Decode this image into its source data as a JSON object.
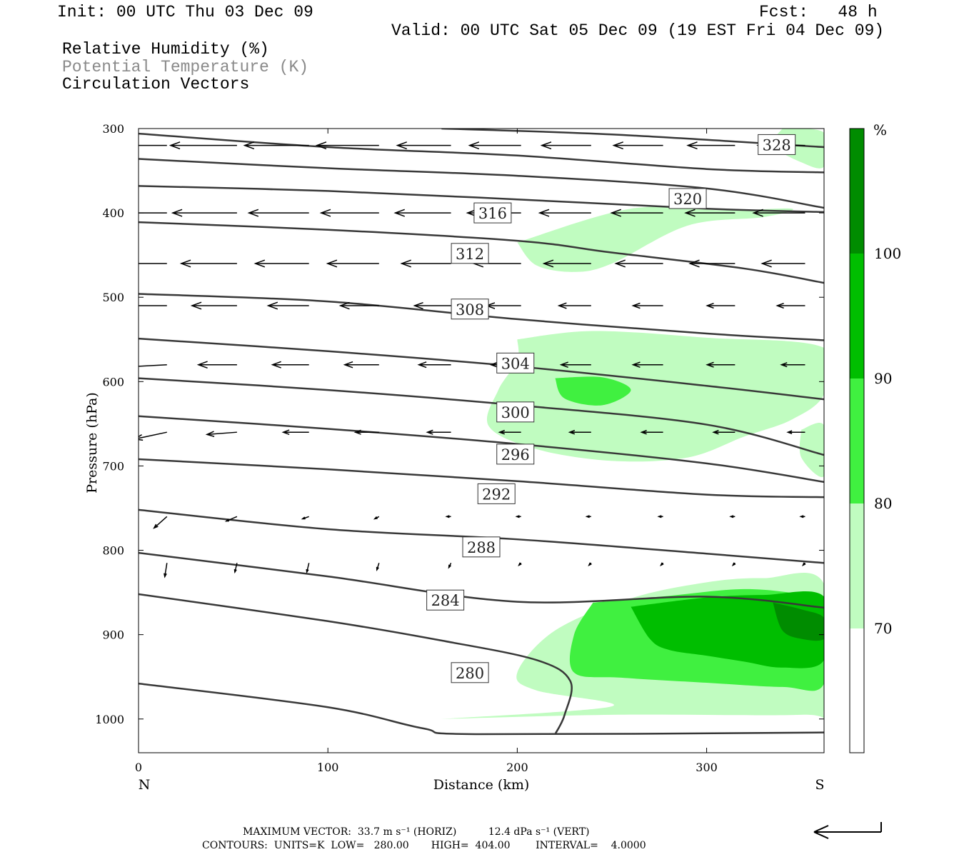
{
  "header": {
    "init": "Init: 00 UTC Thu 03 Dec 09",
    "fcst": "Fcst:   48 h",
    "valid": "Valid: 00 UTC Sat 05 Dec 09 (19 EST Fri 04 Dec 09)",
    "fields": [
      "Relative Humidity (%)",
      "Potential Temperature (K)",
      "Circulation Vectors"
    ]
  },
  "footer": {
    "max_vector_prefix": "MAXIMUM VECTOR:",
    "horiz": "33.7 m s⁻¹ (HORIZ)",
    "vert": "12.4 dPa s⁻¹ (VERT)",
    "contours": "CONTOURS:  UNITS=K  LOW=   280.00",
    "high": "HIGH=  404.00",
    "interval": "INTERVAL=    4.0000"
  },
  "colors": {
    "rh_70": "#c0fcc0",
    "rh_80": "#40f040",
    "rh_90": "#00be00",
    "rh_100": "#008c00",
    "contour": "#383838",
    "muted_text": "#8a8a8a"
  },
  "chart_data": {
    "type": "cross-section",
    "xlabel": "Distance (km)",
    "ylabel": "Pressure (hPa)",
    "xlim": [
      0,
      362
    ],
    "ylim": [
      300,
      1040
    ],
    "x_ticks": [
      0,
      100,
      200,
      300
    ],
    "y_ticks": [
      300,
      400,
      500,
      600,
      700,
      800,
      900,
      1000
    ],
    "x_end_labels": {
      "left": "N",
      "right": "S"
    },
    "colorbar": {
      "unit": "%",
      "levels": [
        70,
        80,
        90,
        100
      ]
    },
    "theta_contours": [
      {
        "label": "328",
        "label_at": [
          337,
          319
        ],
        "points": [
          [
            160,
            300
          ],
          [
            250,
            307
          ],
          [
            362,
            322
          ]
        ]
      },
      {
        "label": null,
        "points": [
          [
            0,
            306
          ],
          [
            100,
            322
          ],
          [
            200,
            332
          ],
          [
            300,
            348
          ],
          [
            362,
            352
          ]
        ]
      },
      {
        "label": null,
        "points": [
          [
            0,
            336
          ],
          [
            100,
            347
          ],
          [
            200,
            356
          ],
          [
            300,
            371
          ],
          [
            362,
            394
          ]
        ]
      },
      {
        "label": "320",
        "label_at": [
          290,
          383
        ],
        "points": [
          [
            0,
            368
          ],
          [
            100,
            374
          ],
          [
            200,
            384
          ],
          [
            300,
            395
          ],
          [
            362,
            399
          ]
        ]
      },
      {
        "label": "316",
        "label_at": [
          187,
          400
        ],
        "points": [
          [
            0,
            411
          ],
          [
            100,
            420
          ],
          [
            200,
            433
          ],
          [
            250,
            447
          ],
          [
            320,
            466
          ],
          [
            362,
            483
          ]
        ]
      },
      {
        "label": "312",
        "label_at": [
          175,
          448
        ],
        "points": [
          [
            0,
            496
          ],
          [
            100,
            505
          ],
          [
            200,
            526
          ],
          [
            300,
            543
          ],
          [
            362,
            551
          ]
        ]
      },
      {
        "label": "308",
        "label_at": [
          175,
          514
        ],
        "points": [
          [
            0,
            549
          ],
          [
            100,
            564
          ],
          [
            200,
            582
          ],
          [
            300,
            605
          ],
          [
            362,
            621
          ]
        ]
      },
      {
        "label": "304",
        "label_at": [
          199,
          578
        ],
        "points": [
          [
            0,
            596
          ],
          [
            100,
            610
          ],
          [
            200,
            628
          ],
          [
            300,
            651
          ],
          [
            362,
            687
          ]
        ]
      },
      {
        "label": "300",
        "label_at": [
          199,
          636
        ],
        "points": [
          [
            0,
            641
          ],
          [
            100,
            656
          ],
          [
            200,
            674
          ],
          [
            300,
            697
          ],
          [
            362,
            719
          ]
        ]
      },
      {
        "label": "296",
        "label_at": [
          199,
          686
        ],
        "points": [
          [
            0,
            692
          ],
          [
            100,
            704
          ],
          [
            200,
            718
          ],
          [
            300,
            734
          ],
          [
            362,
            737
          ]
        ]
      },
      {
        "label": "292",
        "label_at": [
          189,
          733
        ],
        "points": [
          [
            0,
            752
          ],
          [
            100,
            775
          ],
          [
            200,
            787
          ],
          [
            300,
            804
          ],
          [
            362,
            815
          ]
        ]
      },
      {
        "label": "288",
        "label_at": [
          181,
          796
        ],
        "points": [
          [
            0,
            803
          ],
          [
            100,
            831
          ],
          [
            200,
            861
          ],
          [
            300,
            855
          ],
          [
            362,
            868
          ]
        ]
      },
      {
        "label": "284",
        "label_at": [
          162,
          859
        ],
        "points": [
          [
            0,
            852
          ],
          [
            100,
            884
          ],
          [
            160,
            907
          ],
          [
            210,
            930
          ],
          [
            228,
            955
          ],
          [
            225,
            995
          ],
          [
            220,
            1018
          ]
        ]
      },
      {
        "label": "280",
        "label_at": [
          175,
          945
        ],
        "points": [
          [
            0,
            958
          ],
          [
            100,
            986
          ],
          [
            150,
            1011
          ],
          [
            180,
            1018
          ],
          [
            362,
            1016
          ]
        ]
      }
    ],
    "rh_regions": [
      {
        "level": 70,
        "points": [
          [
            160,
            1000
          ],
          [
            250,
            995
          ],
          [
            350,
            995
          ],
          [
            362,
            986
          ],
          [
            362,
            840
          ],
          [
            330,
            833
          ],
          [
            300,
            838
          ],
          [
            260,
            857
          ],
          [
            220,
            895
          ],
          [
            200,
            945
          ],
          [
            210,
            966
          ],
          [
            250,
            985
          ]
        ]
      },
      {
        "level": 70,
        "points": [
          [
            200,
            550
          ],
          [
            240,
            540
          ],
          [
            300,
            548
          ],
          [
            362,
            560
          ],
          [
            362,
            615
          ],
          [
            345,
            645
          ],
          [
            320,
            665
          ],
          [
            290,
            690
          ],
          [
            250,
            694
          ],
          [
            210,
            680
          ],
          [
            185,
            653
          ],
          [
            190,
            610
          ],
          [
            200,
            575
          ]
        ]
      },
      {
        "level": 70,
        "points": [
          [
            200,
            435
          ],
          [
            260,
            395
          ],
          [
            310,
            397
          ],
          [
            345,
            395
          ],
          [
            330,
            405
          ],
          [
            290,
            415
          ],
          [
            250,
            460
          ],
          [
            230,
            470
          ],
          [
            210,
            462
          ]
        ]
      },
      {
        "level": 70,
        "points": [
          [
            340,
            300
          ],
          [
            362,
            305
          ],
          [
            362,
            345
          ],
          [
            350,
            340
          ],
          [
            335,
            320
          ]
        ]
      },
      {
        "level": 70,
        "points": [
          [
            350,
            657
          ],
          [
            362,
            652
          ],
          [
            362,
            712
          ],
          [
            350,
            690
          ]
        ]
      },
      {
        "level": 80,
        "points": [
          [
            240,
            862
          ],
          [
            280,
            854
          ],
          [
            320,
            846
          ],
          [
            352,
            853
          ],
          [
            362,
            862
          ],
          [
            362,
            958
          ],
          [
            340,
            962
          ],
          [
            300,
            957
          ],
          [
            255,
            951
          ],
          [
            230,
            945
          ],
          [
            230,
            900
          ]
        ]
      },
      {
        "level": 80,
        "points": [
          [
            220,
            596
          ],
          [
            245,
            595
          ],
          [
            260,
            610
          ],
          [
            245,
            628
          ],
          [
            225,
            620
          ]
        ]
      },
      {
        "level": 90,
        "points": [
          [
            260,
            867
          ],
          [
            300,
            856
          ],
          [
            330,
            853
          ],
          [
            362,
            855
          ],
          [
            362,
            930
          ],
          [
            340,
            939
          ],
          [
            320,
            932
          ],
          [
            300,
            925
          ],
          [
            280,
            918
          ],
          [
            270,
            905
          ]
        ]
      },
      {
        "level": 100,
        "points": [
          [
            335,
            862
          ],
          [
            350,
            870
          ],
          [
            362,
            880
          ],
          [
            362,
            905
          ],
          [
            350,
            905
          ],
          [
            340,
            895
          ]
        ]
      }
    ],
    "vectors": [
      {
        "p": 320,
        "u": [
          -33,
          -31,
          -30,
          -29,
          -25,
          -24,
          -23,
          -23,
          -22,
          -22
        ],
        "w": [
          0,
          0,
          0,
          0,
          0,
          0,
          0,
          0,
          0,
          0
        ]
      },
      {
        "p": 400,
        "u": [
          -31,
          -30,
          -28,
          -27,
          -26,
          -25,
          -24,
          -24,
          -23,
          -24
        ],
        "w": [
          0,
          0,
          0,
          0,
          0,
          0,
          0,
          0,
          0,
          0
        ]
      },
      {
        "p": 460,
        "u": [
          -26,
          -26,
          -25,
          -24,
          -23,
          -22,
          -22,
          -22,
          -21,
          -20
        ],
        "w": [
          0,
          0,
          0,
          0,
          0,
          0,
          0,
          0,
          0,
          0
        ]
      },
      {
        "p": 510,
        "u": [
          -22,
          -21,
          -19,
          -18,
          -17,
          -16,
          -15,
          -14,
          -13,
          -13
        ],
        "w": [
          0,
          0,
          0,
          0,
          0,
          0,
          0,
          0,
          0,
          0
        ]
      },
      {
        "p": 580,
        "u": [
          -20,
          -18,
          -17,
          -16,
          -15,
          -14,
          -14,
          -14,
          -13,
          -11
        ],
        "w": [
          1,
          0,
          0,
          0,
          0,
          0,
          0,
          0,
          0,
          0
        ]
      },
      {
        "p": 660,
        "u": [
          -15,
          -14,
          -12,
          -11,
          -11,
          -10,
          -10,
          -10,
          -10,
          -8
        ],
        "w": [
          3,
          1,
          0,
          0,
          0,
          0,
          0,
          0,
          0,
          0
        ]
      },
      {
        "p": 760,
        "u": [
          -6,
          -5,
          -3,
          -2,
          -2,
          -2,
          -2,
          -2,
          -2,
          -2
        ],
        "w": [
          5,
          2,
          1,
          1,
          0,
          0,
          0,
          0,
          0,
          0
        ]
      },
      {
        "p": 815,
        "u": [
          -1,
          -1,
          -1,
          -1,
          -1,
          -1,
          -1,
          -1,
          -1,
          -1
        ],
        "w": [
          6,
          4,
          4,
          3,
          2,
          1,
          1,
          1,
          1,
          1
        ]
      }
    ]
  }
}
